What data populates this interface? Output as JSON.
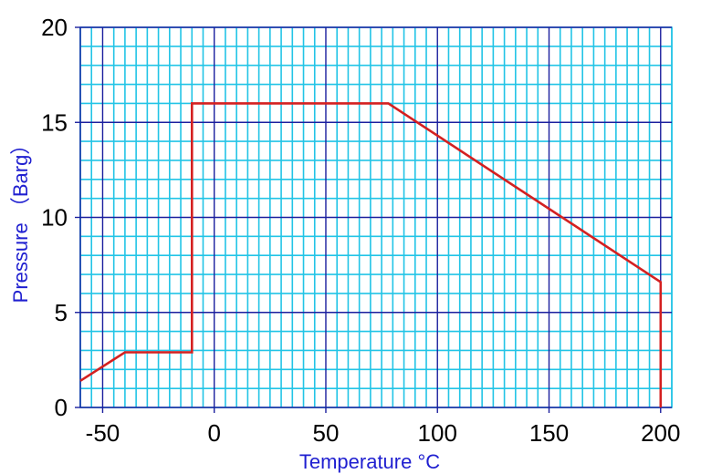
{
  "chart_data": {
    "type": "line",
    "title": "",
    "xlabel": "Temperature  °C",
    "ylabel": "Pressure （Barg）",
    "xlim": [
      -60,
      205
    ],
    "ylim": [
      0,
      20
    ],
    "x_ticks": [
      -50,
      0,
      50,
      100,
      150,
      200
    ],
    "y_ticks": [
      0,
      5,
      10,
      15,
      20
    ],
    "x_tick_labels": [
      "-50",
      "0",
      "50",
      "100",
      "150",
      "200"
    ],
    "y_tick_labels": [
      "0",
      "5",
      "10",
      "15",
      "20"
    ],
    "grid": {
      "on": true,
      "x_minor_step": 5,
      "y_minor_step": 1,
      "x_major_step": 50,
      "y_major_step": 5
    },
    "colors": {
      "minor_grid": "#22c4e6",
      "major_grid": "#1b1f9e",
      "line": "#d42020",
      "axis_title": "#1f1fd0"
    },
    "series": [
      {
        "x": [
          -60,
          -40,
          -10,
          -10,
          78,
          200,
          200
        ],
        "y": [
          1.4,
          2.9,
          2.9,
          16,
          16,
          6.6,
          0
        ]
      }
    ]
  }
}
